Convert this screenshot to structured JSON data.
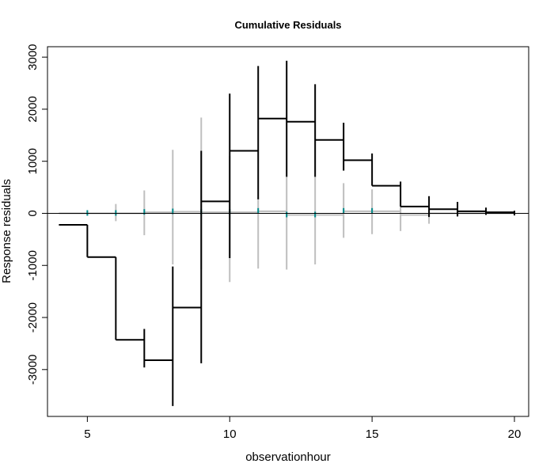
{
  "chart_data": {
    "type": "step",
    "title": "Cumulative Residuals",
    "xlabel": "observationhour",
    "ylabel": "Response  residuals",
    "xlim": [
      3.6,
      20.5
    ],
    "ylim": [
      -3900,
      3200
    ],
    "xticks": [
      5,
      10,
      15,
      20
    ],
    "yticks": [
      -3000,
      -2000,
      -1000,
      0,
      1000,
      2000,
      3000
    ],
    "reference_line": 0,
    "grid": false,
    "legend": "none",
    "colors": {
      "observed": "#000000",
      "simulated": "#bebebe",
      "simulated_mark": "#008b8b",
      "reference": "#000000"
    },
    "series": [
      {
        "values": [
          {
            "x": 4,
            "y": -220,
            "low": -220,
            "high": -220
          },
          {
            "x": 5,
            "y": -840,
            "low": -840,
            "high": -220
          },
          {
            "x": 6,
            "y": -2430,
            "low": -2430,
            "high": -840
          },
          {
            "x": 7,
            "y": -2820,
            "low": -2960,
            "high": -2220
          },
          {
            "x": 8,
            "y": -1810,
            "low": -3700,
            "high": -1020
          },
          {
            "x": 9,
            "y": 230,
            "low": -2880,
            "high": 1200
          },
          {
            "x": 10,
            "y": 1200,
            "low": -860,
            "high": 2300
          },
          {
            "x": 11,
            "y": 1820,
            "low": 270,
            "high": 2830
          },
          {
            "x": 12,
            "y": 1760,
            "low": 700,
            "high": 2930
          },
          {
            "x": 13,
            "y": 1410,
            "low": 700,
            "high": 2480
          },
          {
            "x": 14,
            "y": 1020,
            "low": 820,
            "high": 1740
          },
          {
            "x": 15,
            "y": 530,
            "low": 530,
            "high": 1150
          },
          {
            "x": 16,
            "y": 130,
            "low": 130,
            "high": 610
          },
          {
            "x": 17,
            "y": 80,
            "low": -70,
            "high": 330
          },
          {
            "x": 18,
            "y": 40,
            "low": -60,
            "high": 220
          },
          {
            "x": 19,
            "y": 20,
            "low": -30,
            "high": 110
          },
          {
            "x": 20,
            "y": 0,
            "low": -40,
            "high": 50
          }
        ]
      },
      {
        "values": [
          {
            "x": 4,
            "y": 0,
            "low": 0,
            "high": 0
          },
          {
            "x": 5,
            "y": 0,
            "low": 0,
            "high": 40
          },
          {
            "x": 6,
            "y": 0,
            "low": -150,
            "high": 180
          },
          {
            "x": 7,
            "y": 20,
            "low": -420,
            "high": 440
          },
          {
            "x": 8,
            "y": 30,
            "low": -980,
            "high": 1220
          },
          {
            "x": 9,
            "y": 20,
            "low": -1080,
            "high": 1840
          },
          {
            "x": 10,
            "y": 20,
            "low": -1320,
            "high": 1100
          },
          {
            "x": 11,
            "y": 40,
            "low": -1060,
            "high": 300
          },
          {
            "x": 12,
            "y": -30,
            "low": -1080,
            "high": 700
          },
          {
            "x": 13,
            "y": -30,
            "low": -980,
            "high": 700
          },
          {
            "x": 14,
            "y": 40,
            "low": -470,
            "high": 580
          },
          {
            "x": 15,
            "y": 40,
            "low": -400,
            "high": 460
          },
          {
            "x": 16,
            "y": -30,
            "low": -340,
            "high": 130
          },
          {
            "x": 17,
            "y": 0,
            "low": -200,
            "high": 0
          },
          {
            "x": 18,
            "y": 0,
            "low": -40,
            "high": 0
          },
          {
            "x": 19,
            "y": 0,
            "low": -20,
            "high": 0
          },
          {
            "x": 20,
            "y": 0,
            "low": 0,
            "high": 0
          }
        ]
      }
    ]
  }
}
